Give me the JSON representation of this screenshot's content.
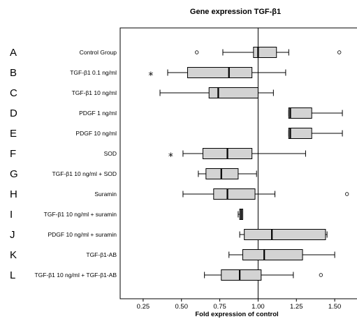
{
  "chart_data": {
    "type": "boxplot",
    "orientation": "horizontal",
    "title": "Gene expression TGF-β1",
    "xlabel": "Fold expression of control",
    "xlim": [
      0.1,
      1.65
    ],
    "xticks": [
      "0.25",
      "0.50",
      "0.75",
      "1.00",
      "1.25",
      "1.50"
    ],
    "reference_line": 1.0,
    "box_color": "#d3d3d3",
    "categories": [
      {
        "letter": "A",
        "label": "Control Group",
        "min": 0.77,
        "q1": 0.97,
        "median": 1.0,
        "q3": 1.12,
        "max": 1.2,
        "outliers": [
          0.6,
          1.53
        ],
        "extremes": []
      },
      {
        "letter": "B",
        "label": "TGF-β1 0.1 ng/ml",
        "min": 0.41,
        "q1": 0.54,
        "median": 0.81,
        "q3": 0.96,
        "max": 1.18,
        "outliers": [],
        "extremes": [
          0.3
        ]
      },
      {
        "letter": "C",
        "label": "TGF-β1 10 ng/ml",
        "min": 0.36,
        "q1": 0.68,
        "median": 0.74,
        "q3": 1.0,
        "max": 1.1,
        "outliers": [],
        "extremes": []
      },
      {
        "letter": "D",
        "label": "PDGF 1 ng/ml",
        "min": 1.2,
        "q1": 1.2,
        "median": 1.21,
        "q3": 1.35,
        "max": 1.55,
        "outliers": [],
        "extremes": []
      },
      {
        "letter": "E",
        "label": "PDGF 10 ng/ml",
        "min": 1.2,
        "q1": 1.2,
        "median": 1.21,
        "q3": 1.35,
        "max": 1.55,
        "outliers": [],
        "extremes": []
      },
      {
        "letter": "F",
        "label": "SOD",
        "min": 0.51,
        "q1": 0.64,
        "median": 0.8,
        "q3": 0.96,
        "max": 1.31,
        "outliers": [],
        "extremes": [
          0.43
        ]
      },
      {
        "letter": "G",
        "label": "TGF-β1 10 ng/ml + SOD",
        "min": 0.61,
        "q1": 0.66,
        "median": 0.76,
        "q3": 0.87,
        "max": 0.99,
        "outliers": [],
        "extremes": []
      },
      {
        "letter": "H",
        "label": "Suramin",
        "min": 0.51,
        "q1": 0.71,
        "median": 0.8,
        "q3": 0.98,
        "max": 1.11,
        "outliers": [
          1.58
        ],
        "extremes": []
      },
      {
        "letter": "I",
        "label": "TGF-β1 10 ng/ml + suramin",
        "min": 0.87,
        "q1": 0.88,
        "median": 0.89,
        "q3": 0.9,
        "max": 0.9,
        "outliers": [],
        "extremes": []
      },
      {
        "letter": "J",
        "label": "PDGF 10 ng/ml + suramin",
        "min": 0.88,
        "q1": 0.91,
        "median": 1.09,
        "q3": 1.44,
        "max": 1.45,
        "outliers": [],
        "extremes": []
      },
      {
        "letter": "K",
        "label": "TGF-β1-AB",
        "min": 0.81,
        "q1": 0.9,
        "median": 1.04,
        "q3": 1.29,
        "max": 1.5,
        "outliers": [],
        "extremes": []
      },
      {
        "letter": "L",
        "label": "TGF-β1 10 ng/ml + TGF-β1-AB",
        "min": 0.65,
        "q1": 0.76,
        "median": 0.88,
        "q3": 1.02,
        "max": 1.23,
        "outliers": [
          1.41
        ],
        "extremes": []
      }
    ]
  }
}
